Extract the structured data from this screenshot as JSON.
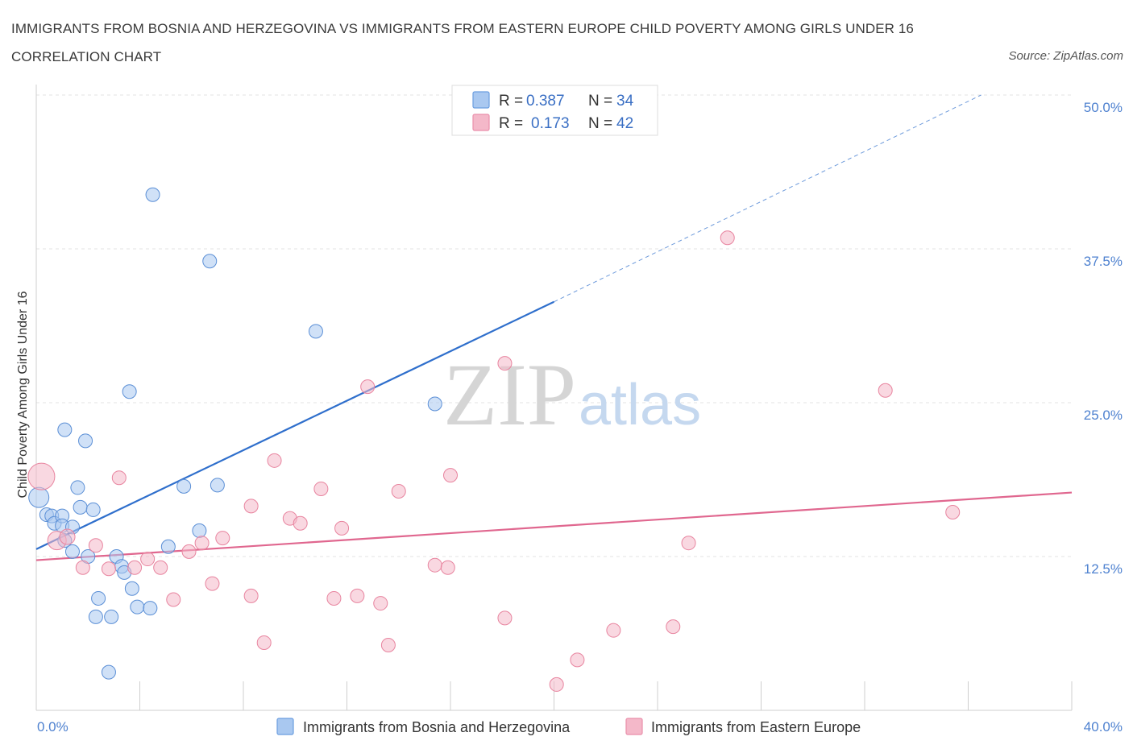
{
  "title": "IMMIGRANTS FROM BOSNIA AND HERZEGOVINA VS IMMIGRANTS FROM EASTERN EUROPE CHILD POVERTY AMONG GIRLS UNDER 16 CORRELATION CHART",
  "source": "Source: ZipAtlas.com",
  "watermark": {
    "zip": "ZIP",
    "atlas": "atlas"
  },
  "legend": {
    "r_label": "R =",
    "n_label": "N =",
    "rows": [
      {
        "r": "0.387",
        "n": "34",
        "color": "#a9c8f0"
      },
      {
        "r": "0.173",
        "n": "42",
        "color": "#f4b8c9"
      }
    ]
  },
  "chart_data": {
    "type": "scatter",
    "title": "IMMIGRANTS FROM BOSNIA AND HERZEGOVINA VS IMMIGRANTS FROM EASTERN EUROPE CHILD POVERTY AMONG GIRLS UNDER 16 CORRELATION CHART",
    "xlabel": "",
    "ylabel": "Child Poverty Among Girls Under 16",
    "xlim": [
      0,
      40
    ],
    "ylim": [
      0,
      50
    ],
    "x_tick_labels": [
      "0.0%",
      "40.0%"
    ],
    "y_ticks": [
      12.5,
      25.0,
      37.5,
      50.0
    ],
    "y_tick_labels": [
      "12.5%",
      "25.0%",
      "37.5%",
      "50.0%"
    ],
    "grid": true,
    "legend_placement": "top-center",
    "series": [
      {
        "name": "Immigrants from Bosnia and Herzegovina",
        "color": "#5b8fd6",
        "fill": "#a9c8f0",
        "trend_color": "#2f6fcc",
        "trend": {
          "x0": 0,
          "y0": 13.1,
          "x1": 20.0,
          "y1": 33.2,
          "dash_x1": 36.5,
          "dash_y1": 50.0
        },
        "points": [
          [
            0.1,
            17.3,
            22
          ],
          [
            0.4,
            15.9,
            14
          ],
          [
            0.6,
            15.8,
            14
          ],
          [
            0.7,
            15.2,
            14
          ],
          [
            1.0,
            15.8,
            14
          ],
          [
            1.0,
            15.0,
            14
          ],
          [
            1.1,
            13.8,
            14
          ],
          [
            1.1,
            22.8,
            14
          ],
          [
            1.4,
            14.9,
            14
          ],
          [
            1.4,
            12.9,
            14
          ],
          [
            1.6,
            18.1,
            14
          ],
          [
            1.7,
            16.5,
            14
          ],
          [
            1.9,
            21.9,
            14
          ],
          [
            2.0,
            12.5,
            14
          ],
          [
            2.2,
            16.3,
            14
          ],
          [
            2.3,
            7.6,
            14
          ],
          [
            2.4,
            9.1,
            14
          ],
          [
            2.8,
            3.1,
            14
          ],
          [
            2.9,
            7.6,
            14
          ],
          [
            3.1,
            12.5,
            14
          ],
          [
            3.3,
            11.7,
            14
          ],
          [
            3.4,
            11.2,
            14
          ],
          [
            3.7,
            9.9,
            14
          ],
          [
            3.9,
            8.4,
            14
          ],
          [
            3.6,
            25.9,
            14
          ],
          [
            4.4,
            8.3,
            14
          ],
          [
            4.5,
            41.9,
            14
          ],
          [
            5.1,
            13.3,
            14
          ],
          [
            5.7,
            18.2,
            14
          ],
          [
            6.3,
            14.6,
            14
          ],
          [
            6.7,
            36.5,
            14
          ],
          [
            7.0,
            18.3,
            14
          ],
          [
            10.8,
            30.8,
            14
          ],
          [
            15.4,
            24.9,
            14
          ]
        ]
      },
      {
        "name": "Immigrants from Eastern Europe",
        "color": "#e8849f",
        "fill": "#f4b8c9",
        "trend_color": "#e0678f",
        "trend": {
          "x0": 0,
          "y0": 12.2,
          "x1": 40.0,
          "y1": 17.7
        },
        "points": [
          [
            0.2,
            19.0,
            30
          ],
          [
            0.8,
            13.8,
            20
          ],
          [
            1.2,
            14.1,
            16
          ],
          [
            1.8,
            11.6,
            14
          ],
          [
            2.3,
            13.4,
            14
          ],
          [
            2.8,
            11.5,
            14
          ],
          [
            3.2,
            18.9,
            14
          ],
          [
            3.8,
            11.6,
            14
          ],
          [
            4.3,
            12.3,
            14
          ],
          [
            4.8,
            11.6,
            14
          ],
          [
            5.3,
            9.0,
            14
          ],
          [
            5.9,
            12.9,
            14
          ],
          [
            6.4,
            13.6,
            14
          ],
          [
            6.8,
            10.3,
            14
          ],
          [
            7.2,
            14.0,
            14
          ],
          [
            8.3,
            9.3,
            14
          ],
          [
            8.3,
            16.6,
            14
          ],
          [
            8.8,
            5.5,
            14
          ],
          [
            9.2,
            20.3,
            14
          ],
          [
            9.8,
            15.6,
            14
          ],
          [
            10.2,
            15.2,
            14
          ],
          [
            11.0,
            18.0,
            14
          ],
          [
            11.5,
            9.1,
            14
          ],
          [
            11.8,
            14.8,
            14
          ],
          [
            12.4,
            9.3,
            14
          ],
          [
            12.8,
            26.3,
            14
          ],
          [
            13.3,
            8.7,
            14
          ],
          [
            13.6,
            5.3,
            14
          ],
          [
            14.0,
            17.8,
            14
          ],
          [
            15.4,
            11.8,
            14
          ],
          [
            15.9,
            11.6,
            14
          ],
          [
            16.0,
            19.1,
            14
          ],
          [
            18.1,
            28.2,
            14
          ],
          [
            18.1,
            7.5,
            14
          ],
          [
            20.1,
            2.1,
            14
          ],
          [
            20.9,
            4.1,
            14
          ],
          [
            22.3,
            6.5,
            14
          ],
          [
            24.6,
            6.8,
            14
          ],
          [
            25.2,
            13.6,
            14
          ],
          [
            26.7,
            38.4,
            14
          ],
          [
            32.8,
            26.0,
            14
          ],
          [
            35.4,
            16.1,
            14
          ]
        ]
      }
    ]
  }
}
